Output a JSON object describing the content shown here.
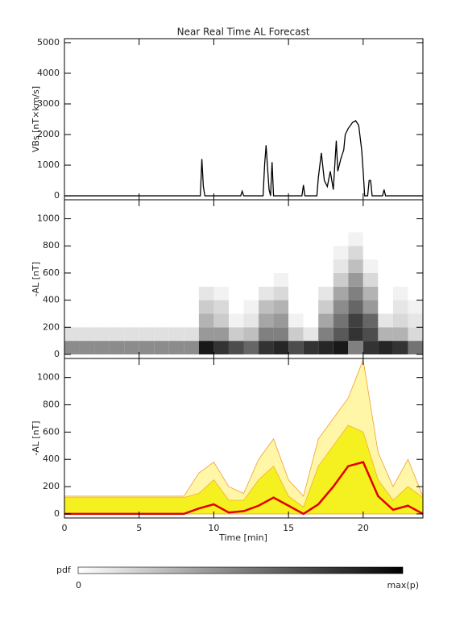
{
  "chart_data": [
    {
      "type": "line",
      "title": "Near Real Time AL Forecast",
      "y_label": "VBs [nT×km/s]",
      "xlim": [
        0,
        24
      ],
      "ylim": [
        -130,
        5130
      ],
      "yticks": [
        0,
        1000,
        2000,
        3000,
        4000,
        5000
      ],
      "color": "#000000",
      "x": [
        0,
        9.1,
        9.2,
        9.3,
        9.4,
        11.8,
        11.9,
        12.0,
        13.3,
        13.4,
        13.5,
        13.6,
        13.7,
        13.8,
        13.9,
        14.0,
        15.9,
        16.0,
        16.1,
        16.9,
        17.0,
        17.2,
        17.4,
        17.6,
        17.8,
        18.0,
        18.2,
        18.3,
        18.5,
        18.7,
        18.8,
        19.0,
        19.3,
        19.5,
        19.7,
        19.9,
        20.0,
        20.1,
        20.3,
        20.4,
        20.5,
        20.6,
        21.3,
        21.4,
        21.5,
        24
      ],
      "values": [
        0,
        0,
        1200,
        300,
        0,
        0,
        150,
        0,
        0,
        1000,
        1650,
        900,
        200,
        0,
        1100,
        0,
        0,
        350,
        0,
        0,
        600,
        1400,
        500,
        300,
        800,
        200,
        1800,
        800,
        1200,
        1500,
        2000,
        2200,
        2400,
        2450,
        2300,
        1500,
        800,
        0,
        0,
        500,
        500,
        0,
        0,
        200,
        0,
        0
      ]
    },
    {
      "type": "heatmap",
      "y_label": "-AL [nT]",
      "xlim": [
        0,
        24
      ],
      "ylim": [
        -30,
        1140
      ],
      "yticks": [
        0,
        200,
        400,
        600,
        800,
        1000
      ],
      "xbins": [
        0,
        1,
        2,
        3,
        4,
        5,
        6,
        7,
        8,
        9,
        10,
        11,
        12,
        13,
        14,
        15,
        16,
        17,
        18,
        19,
        20,
        21,
        22,
        23,
        24
      ],
      "ybins": [
        0,
        100,
        200,
        300,
        400,
        500,
        600,
        700,
        800,
        900
      ],
      "z": [
        [
          0.45,
          0.12,
          0,
          0,
          0,
          0,
          0,
          0,
          0
        ],
        [
          0.45,
          0.12,
          0,
          0,
          0,
          0,
          0,
          0,
          0
        ],
        [
          0.45,
          0.12,
          0,
          0,
          0,
          0,
          0,
          0,
          0
        ],
        [
          0.45,
          0.12,
          0,
          0,
          0,
          0,
          0,
          0,
          0
        ],
        [
          0.45,
          0.12,
          0,
          0,
          0,
          0,
          0,
          0,
          0
        ],
        [
          0.45,
          0.12,
          0,
          0,
          0,
          0,
          0,
          0,
          0
        ],
        [
          0.45,
          0.12,
          0,
          0,
          0,
          0,
          0,
          0,
          0
        ],
        [
          0.45,
          0.12,
          0,
          0,
          0,
          0,
          0,
          0,
          0
        ],
        [
          0.45,
          0.12,
          0,
          0,
          0,
          0,
          0,
          0,
          0
        ],
        [
          0.9,
          0.4,
          0.3,
          0.2,
          0.1,
          0,
          0,
          0,
          0
        ],
        [
          0.8,
          0.4,
          0.2,
          0.15,
          0.05,
          0,
          0,
          0,
          0
        ],
        [
          0.7,
          0.2,
          0.05,
          0,
          0,
          0,
          0,
          0,
          0
        ],
        [
          0.6,
          0.25,
          0.1,
          0.05,
          0,
          0,
          0,
          0,
          0
        ],
        [
          0.8,
          0.5,
          0.35,
          0.25,
          0.1,
          0,
          0,
          0,
          0
        ],
        [
          0.85,
          0.5,
          0.4,
          0.3,
          0.15,
          0.05,
          0,
          0,
          0
        ],
        [
          0.7,
          0.2,
          0.05,
          0,
          0,
          0,
          0,
          0,
          0
        ],
        [
          0.8,
          0.1,
          0,
          0,
          0,
          0,
          0,
          0,
          0
        ],
        [
          0.85,
          0.5,
          0.35,
          0.2,
          0.1,
          0,
          0,
          0,
          0
        ],
        [
          0.9,
          0.65,
          0.55,
          0.45,
          0.35,
          0.2,
          0.1,
          0.05,
          0
        ],
        [
          0.5,
          0.8,
          0.75,
          0.6,
          0.5,
          0.4,
          0.25,
          0.15,
          0.05
        ],
        [
          0.8,
          0.7,
          0.6,
          0.4,
          0.3,
          0.15,
          0.05,
          0,
          0
        ],
        [
          0.85,
          0.3,
          0.1,
          0,
          0,
          0,
          0,
          0,
          0
        ],
        [
          0.8,
          0.3,
          0.15,
          0.1,
          0.05,
          0,
          0,
          0,
          0
        ],
        [
          0.55,
          0.15,
          0.1,
          0.05,
          0,
          0,
          0,
          0,
          0
        ]
      ],
      "colorbar": {
        "label": "pdf",
        "min_label": "0",
        "max_label": "max(p)"
      }
    },
    {
      "type": "band",
      "y_label": "-AL [nT]",
      "x_label": "Time [min]",
      "xlim": [
        0,
        24
      ],
      "ylim": [
        -30,
        1140
      ],
      "yticks": [
        0,
        200,
        400,
        600,
        800,
        1000
      ],
      "xticks": [
        0,
        5,
        10,
        15,
        20
      ],
      "x": [
        0,
        1,
        2,
        3,
        4,
        5,
        6,
        7,
        8,
        9,
        10,
        11,
        12,
        13,
        14,
        15,
        16,
        17,
        18,
        19,
        20,
        21,
        22,
        23,
        24
      ],
      "series": [
        {
          "style": "area",
          "color": "#fff6a8",
          "stroke": "#f0a030",
          "values": [
            130,
            130,
            130,
            130,
            130,
            130,
            130,
            130,
            130,
            300,
            380,
            200,
            150,
            400,
            550,
            250,
            130,
            550,
            700,
            850,
            1130,
            450,
            200,
            400,
            130
          ]
        },
        {
          "style": "area",
          "color": "#f5f020",
          "stroke": "#f0b030",
          "values": [
            120,
            120,
            120,
            120,
            120,
            120,
            120,
            120,
            120,
            150,
            250,
            100,
            100,
            250,
            350,
            130,
            50,
            350,
            500,
            650,
            600,
            250,
            100,
            200,
            120
          ]
        },
        {
          "style": "line",
          "color": "#e00000",
          "values": [
            0,
            0,
            0,
            0,
            0,
            0,
            0,
            0,
            0,
            40,
            70,
            10,
            20,
            60,
            120,
            60,
            0,
            70,
            200,
            350,
            380,
            130,
            30,
            60,
            0
          ]
        }
      ]
    }
  ]
}
